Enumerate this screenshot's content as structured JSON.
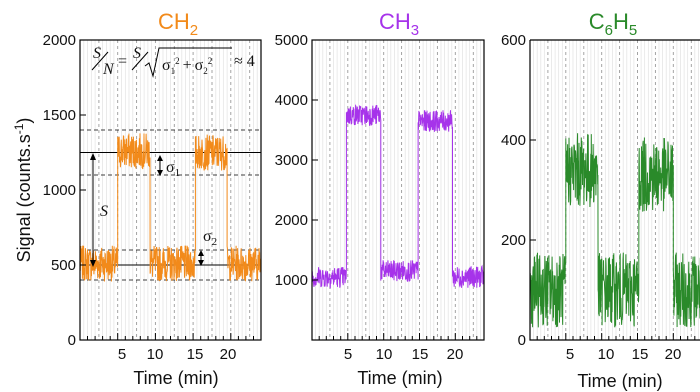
{
  "chart_data": [
    {
      "type": "line",
      "title": "CH2",
      "title_main": "CH",
      "title_sub": "2",
      "xlabel": "Time (min)",
      "ylabel": "Signal (counts.s-1)",
      "ylabel_main": "Signal (counts.s",
      "ylabel_sup": "-1",
      "ylabel_end": ")",
      "color": "#f28a1a",
      "xlim": [
        0,
        24
      ],
      "ylim": [
        0,
        2000
      ],
      "xticks": [
        "5",
        "10",
        "15",
        "20"
      ],
      "yticks": [
        "0",
        "500",
        "1000",
        "1500",
        "2000"
      ],
      "ytick_values": [
        0,
        500,
        1000,
        1500,
        2000
      ],
      "segments": [
        {
          "x": [
            0,
            5
          ],
          "y": 510
        },
        {
          "x": [
            5,
            9.3
          ],
          "y": 1260
        },
        {
          "x": [
            9.3,
            15.3
          ],
          "y": 510
        },
        {
          "x": [
            15.3,
            19.5
          ],
          "y": 1250
        },
        {
          "x": [
            19.5,
            24
          ],
          "y": 510
        }
      ],
      "noise_amplitude": 120,
      "reference_lines": {
        "solid": [
          1250,
          500
        ],
        "dashed": [
          1400,
          1100,
          600,
          400
        ]
      },
      "annotations": {
        "formula": "S/N = S/√(σ1² + σ2²) ≈ 4",
        "s_label": "S",
        "sigma1": "σ1",
        "sigma1_main": "σ",
        "sigma1_sub": "1",
        "sigma2": "σ2",
        "sigma2_main": "σ",
        "sigma2_sub": "2"
      }
    },
    {
      "type": "line",
      "title": "CH3",
      "title_main": "CH",
      "title_sub": "3",
      "xlabel": "Time (min)",
      "color": "#a633ea",
      "xlim": [
        0,
        24
      ],
      "ylim": [
        0,
        5000
      ],
      "xticks": [
        "5",
        "10",
        "15",
        "20"
      ],
      "yticks": [
        "1000",
        "2000",
        "3000",
        "4000",
        "5000"
      ],
      "ytick_values": [
        1000,
        2000,
        3000,
        4000,
        5000
      ],
      "segments": [
        {
          "x": [
            0,
            4.8
          ],
          "y": 1050
        },
        {
          "x": [
            4.8,
            9.6
          ],
          "y": 3750
        },
        {
          "x": [
            9.6,
            14.8
          ],
          "y": 1150
        },
        {
          "x": [
            14.8,
            19.6
          ],
          "y": 3650
        },
        {
          "x": [
            19.6,
            24
          ],
          "y": 1050
        }
      ],
      "noise_amplitude": 180
    },
    {
      "type": "line",
      "title": "C6H5",
      "title_parts": [
        "C",
        "6",
        "H",
        "5"
      ],
      "xlabel": "Time (min)",
      "color": "#2a8a2a",
      "xlim": [
        0,
        24
      ],
      "ylim": [
        0,
        600
      ],
      "xticks": [
        "5",
        "10",
        "15",
        "20"
      ],
      "yticks": [
        "0",
        "200",
        "400",
        "600"
      ],
      "ytick_values": [
        0,
        200,
        400,
        600
      ],
      "segments": [
        {
          "x": [
            0,
            5
          ],
          "y": 100
        },
        {
          "x": [
            5,
            9.5
          ],
          "y": 340
        },
        {
          "x": [
            9.5,
            15.2
          ],
          "y": 100
        },
        {
          "x": [
            15.2,
            20
          ],
          "y": 330
        },
        {
          "x": [
            20,
            24
          ],
          "y": 100
        }
      ],
      "noise_amplitude": 75
    }
  ]
}
